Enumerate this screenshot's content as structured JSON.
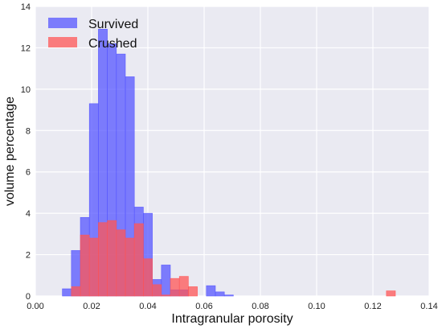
{
  "chart_data": {
    "type": "bar",
    "title": "",
    "xlabel": "Intragranular porosity",
    "ylabel": "volume percentage",
    "xlim": [
      0.0,
      0.14
    ],
    "ylim": [
      0,
      14
    ],
    "xticks": [
      0.0,
      0.02,
      0.04,
      0.06,
      0.08,
      0.1,
      0.12,
      0.14
    ],
    "xtick_labels": [
      "0.00",
      "0.02",
      "0.04",
      "0.06",
      "0.08",
      "0.10",
      "0.12",
      "0.14"
    ],
    "yticks": [
      0,
      2,
      4,
      6,
      8,
      10,
      12,
      14
    ],
    "ytick_labels": [
      "0",
      "2",
      "4",
      "6",
      "8",
      "10",
      "12",
      "14"
    ],
    "grid": true,
    "legend_position": "top-left",
    "bin_width": 0.0032,
    "series": [
      {
        "name": "Survived",
        "color": "#5555ff",
        "bins": [
          {
            "x0": 0.0096,
            "value": 0.35
          },
          {
            "x0": 0.0128,
            "value": 2.2
          },
          {
            "x0": 0.016,
            "value": 3.8
          },
          {
            "x0": 0.0192,
            "value": 9.3
          },
          {
            "x0": 0.0224,
            "value": 12.9
          },
          {
            "x0": 0.0256,
            "value": 12.2
          },
          {
            "x0": 0.0288,
            "value": 11.7
          },
          {
            "x0": 0.032,
            "value": 10.6
          },
          {
            "x0": 0.0352,
            "value": 4.3
          },
          {
            "x0": 0.0384,
            "value": 4.0
          },
          {
            "x0": 0.0416,
            "value": 0.8
          },
          {
            "x0": 0.0448,
            "value": 1.5
          },
          {
            "x0": 0.048,
            "value": 0.3
          },
          {
            "x0": 0.0512,
            "value": 0.3
          },
          {
            "x0": 0.0608,
            "value": 0.5
          },
          {
            "x0": 0.064,
            "value": 0.2
          },
          {
            "x0": 0.0672,
            "value": 0.05
          }
        ]
      },
      {
        "name": "Crushed",
        "color": "#ff5555",
        "bins": [
          {
            "x0": 0.0128,
            "value": 0.45
          },
          {
            "x0": 0.016,
            "value": 2.95
          },
          {
            "x0": 0.0192,
            "value": 2.8
          },
          {
            "x0": 0.0224,
            "value": 3.55
          },
          {
            "x0": 0.0256,
            "value": 3.65
          },
          {
            "x0": 0.0288,
            "value": 3.2
          },
          {
            "x0": 0.032,
            "value": 2.8
          },
          {
            "x0": 0.0352,
            "value": 3.5
          },
          {
            "x0": 0.0384,
            "value": 1.8
          },
          {
            "x0": 0.0416,
            "value": 0.55
          },
          {
            "x0": 0.0448,
            "value": 0.05
          },
          {
            "x0": 0.048,
            "value": 0.85
          },
          {
            "x0": 0.0512,
            "value": 0.95
          },
          {
            "x0": 0.0544,
            "value": 0.45
          },
          {
            "x0": 0.1248,
            "value": 0.25
          }
        ]
      }
    ]
  }
}
